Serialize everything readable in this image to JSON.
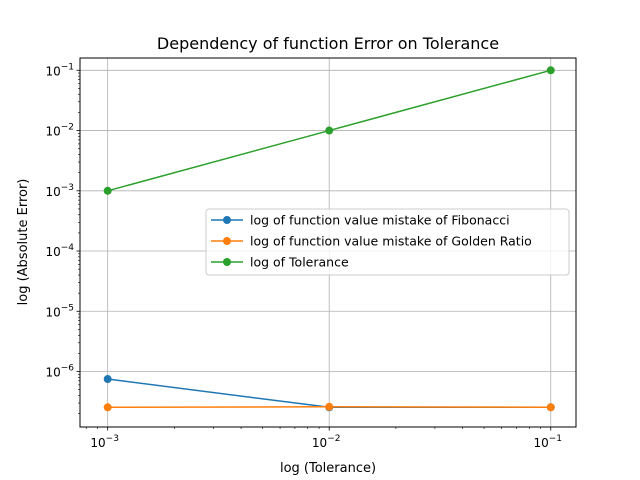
{
  "chart_data": {
    "type": "line",
    "title": "Dependency of function Error on Tolerance",
    "xlabel": "log (Tolerance)",
    "ylabel": "log (Absolute Error)",
    "xscale": "log",
    "yscale": "log",
    "xlim": [
      0.00075,
      0.13
    ],
    "ylim": [
      1.2e-07,
      0.16
    ],
    "grid": true,
    "legend_position": "center-right",
    "x": [
      0.001,
      0.01,
      0.1
    ],
    "x_ticks": [
      {
        "base": "10",
        "exp": "−3"
      },
      {
        "base": "10",
        "exp": "−2"
      },
      {
        "base": "10",
        "exp": "−1"
      }
    ],
    "y_ticks": [
      {
        "base": "10",
        "exp": "−6"
      },
      {
        "base": "10",
        "exp": "−5"
      },
      {
        "base": "10",
        "exp": "−4"
      },
      {
        "base": "10",
        "exp": "−3"
      },
      {
        "base": "10",
        "exp": "−2"
      },
      {
        "base": "10",
        "exp": "−1"
      }
    ],
    "series": [
      {
        "name": "log of function value mistake of Fibonacci",
        "color": "#1f77b4",
        "values": [
          7.5e-07,
          2.55e-07,
          2.55e-07
        ]
      },
      {
        "name": "log of function value mistake of Golden Ratio",
        "color": "#ff7f0e",
        "values": [
          2.55e-07,
          2.6e-07,
          2.55e-07
        ]
      },
      {
        "name": "log of Tolerance",
        "color": "#2ca02c",
        "values": [
          0.001,
          0.01,
          0.1
        ]
      }
    ]
  }
}
